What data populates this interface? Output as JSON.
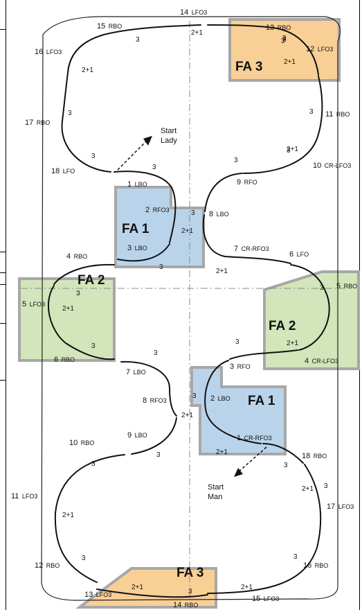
{
  "colors": {
    "fa1_fill": "#b9d3ea",
    "fa2_fill": "#d2e5bb",
    "fa3_fill": "#f8cf95",
    "area_border": "#a7a7a7",
    "trace": "#111111",
    "axis": "#8a8a8a"
  },
  "areas": {
    "fa1_top": "FA 1",
    "fa1_bottom": "FA 1",
    "fa2_left": "FA 2",
    "fa2_right": "FA 2",
    "fa3_top": "FA 3",
    "fa3_bottom": "FA 3"
  },
  "start": {
    "lady_line1": "Start",
    "lady_line2": "Lady",
    "man_line1": "Start",
    "man_line2": "Man"
  },
  "steps": {
    "s1_lbo_num": "1",
    "s1_lbo_code": "LBO",
    "s2_rfo3_num": "2",
    "s2_rfo3_code": "RFO3",
    "s3_lbo_num": "3",
    "s3_lbo_code": "LBO",
    "s4_rbo_num": "4",
    "s4_rbo_code": "RBO",
    "s5_lfo3_num": "5",
    "s5_lfo3_code": "LFO3",
    "s6_rbo_num": "6",
    "s6_rbo_code": "RBO",
    "s7_lbo_num": "7",
    "s7_lbo_code": "LBO",
    "s8_rfo3_num": "8",
    "s8_rfo3_code": "RFO3",
    "s9_lbo_num": "9",
    "s9_lbo_code": "LBO",
    "s10_rbo_num": "10",
    "s10_rbo_code": "RBO",
    "s11_lfo3_num": "11",
    "s11_lfo3_code": "LFO3",
    "s12_rbo_num": "12",
    "s12_rbo_code": "RBO",
    "s13_lfo3_num": "13",
    "s13_lfo3_code": "LFO3",
    "s14_rbo_num": "14",
    "s14_rbo_code": "RBO",
    "s15_lfo3_num": "15",
    "s15_lfo3_code": "LFO3",
    "s16_rbo_num": "16",
    "s16_rbo_code": "RBO",
    "s17_lfo3_num": "17",
    "s17_lfo3_code": "LFO3",
    "s18_rbo_num": "18",
    "s18_rbo_code": "RBO",
    "m1_crrfo3_num": "1",
    "m1_crrfo3_code": "CR-RFO3",
    "m2_lbo_num": "2",
    "m2_lbo_code": "LBO",
    "m3_rfo_num": "3",
    "m3_rfo_code": "RFO",
    "m4_crlfo3_num": "4",
    "m4_crlfo3_code": "CR-LFO3",
    "m5_rbo_num": "5",
    "m5_rbo_code": "RBO",
    "m6_lfo_num": "6",
    "m6_lfo_code": "LFO",
    "m7_crrfo3_num": "7",
    "m7_crrfo3_code": "CR-RFO3",
    "m8_lbo_num": "8",
    "m8_lbo_code": "LBO",
    "m9_rfo_num": "9",
    "m9_rfo_code": "RFO",
    "m10_crlfo3_num": "10",
    "m10_crlfo3_code": "CR-LFO3",
    "m11_rbo_num": "11",
    "m11_rbo_code": "RBO",
    "m12_lfo3_num": "12",
    "m12_lfo3_code": "LFO3",
    "m13_rbo_num": "13",
    "m13_rbo_code": "RBO",
    "m14_lfo3_num": "14",
    "m14_lfo3_code": "LFO3",
    "m15_rbo_num": "15",
    "m15_rbo_code": "RBO",
    "m16_lfo3_num": "16",
    "m16_lfo3_code": "LFO3",
    "m17_rbo_num": "17",
    "m17_rbo_code": "RBO",
    "m18_lfo_num": "18",
    "m18_lfo_code": "LFO"
  },
  "counts": {
    "c01": "3",
    "c02": "2+1",
    "c03": "3",
    "c04": "3",
    "c05": "3",
    "c06": "2+1",
    "c07": "3",
    "c08": "3",
    "c09": "2+1",
    "c10": "3",
    "c11": "3",
    "c12": "3",
    "c13": "3",
    "c14": "2+1",
    "c15": "3",
    "c16": "3",
    "c17": "2+1",
    "c18": "3",
    "c19": "2+1",
    "c20": "3",
    "c21": "3",
    "c22": "2+1",
    "c23": "3",
    "c24": "2+1",
    "c25": "3",
    "c26": "3",
    "c27": "2+1",
    "c28": "3",
    "c29": "2+1",
    "c30": "2+1",
    "c31": "3",
    "c32": "3",
    "c33": "3",
    "c34": "2+1",
    "c35": "2+1",
    "c36": "3",
    "c37": "3",
    "c38": "2+1",
    "c39": "3"
  }
}
